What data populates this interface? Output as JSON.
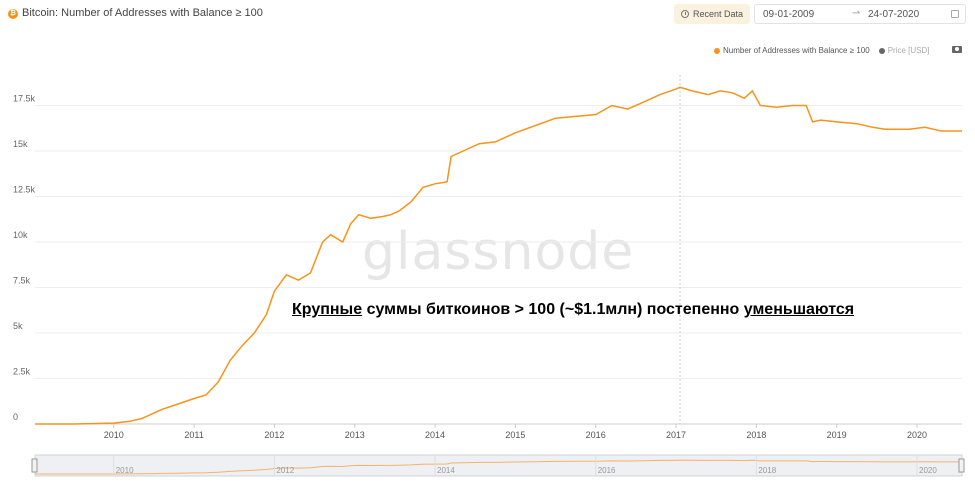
{
  "header": {
    "title": "Bitcoin: Number of Addresses with Balance ≥ 100",
    "coin_symbol": "₿",
    "recent_label": "Recent Data",
    "date_start": "09-01-2009",
    "date_arrow": "⇀",
    "date_end": "24-07-2020"
  },
  "legend": {
    "series_label": "Number of Addresses with Balance ≥ 100",
    "price_label": "Price [USD]"
  },
  "watermark": "glassnode",
  "annotation": {
    "part1": "Крупные",
    "part2": " суммы биткоинов > 100 (~$1.1млн) постепенно ",
    "part3": "уменьшаются"
  },
  "colors": {
    "series": "#f7931a",
    "price": "#666666",
    "grid": "#eeeeee"
  },
  "chart_data": {
    "type": "line",
    "title": "Bitcoin: Number of Addresses with Balance ≥ 100",
    "xlim": [
      2009.02,
      2020.56
    ],
    "ylim": [
      0,
      20000
    ],
    "yticks": [
      0,
      2500,
      5000,
      7500,
      10000,
      12500,
      15000,
      17500
    ],
    "ytick_labels": [
      "0",
      "2.5k",
      "5k",
      "7.5k",
      "10k",
      "12.5k",
      "15k",
      "17.5k"
    ],
    "xticks": [
      2010,
      2011,
      2012,
      2013,
      2014,
      2015,
      2016,
      2017,
      2018,
      2019,
      2020
    ],
    "xtick_labels": [
      "2010",
      "2011",
      "2012",
      "2013",
      "2014",
      "2015",
      "2016",
      "2017",
      "2018",
      "2019",
      "2020"
    ],
    "navigator_ticks": [
      "2010",
      "2012",
      "2014",
      "2016",
      "2018",
      "2020"
    ],
    "marker_x": 2017.05,
    "series": [
      {
        "name": "Number of Addresses with Balance ≥ 100",
        "x": [
          2009.02,
          2009.5,
          2010.0,
          2010.2,
          2010.35,
          2010.5,
          2010.6,
          2010.8,
          2011.0,
          2011.15,
          2011.3,
          2011.45,
          2011.6,
          2011.75,
          2011.9,
          2012.0,
          2012.05,
          2012.15,
          2012.3,
          2012.45,
          2012.6,
          2012.7,
          2012.85,
          2012.95,
          2013.05,
          2013.2,
          2013.35,
          2013.45,
          2013.55,
          2013.7,
          2013.85,
          2014.0,
          2014.15,
          2014.2,
          2014.35,
          2014.55,
          2014.75,
          2015.0,
          2015.25,
          2015.5,
          2015.75,
          2016.0,
          2016.2,
          2016.4,
          2016.6,
          2016.8,
          2017.0,
          2017.05,
          2017.2,
          2017.4,
          2017.55,
          2017.7,
          2017.85,
          2017.95,
          2018.05,
          2018.25,
          2018.45,
          2018.62,
          2018.7,
          2018.8,
          2019.0,
          2019.25,
          2019.45,
          2019.6,
          2019.9,
          2020.1,
          2020.3,
          2020.4,
          2020.56
        ],
        "y": [
          0,
          0,
          50,
          150,
          300,
          600,
          800,
          1100,
          1400,
          1600,
          2300,
          3500,
          4300,
          5000,
          6000,
          7300,
          7600,
          8200,
          7900,
          8300,
          10000,
          10400,
          10000,
          11000,
          11500,
          11300,
          11400,
          11500,
          11700,
          12200,
          13000,
          13200,
          13300,
          14700,
          15000,
          15400,
          15500,
          16000,
          16400,
          16800,
          16900,
          17000,
          17500,
          17300,
          17700,
          18100,
          18400,
          18500,
          18300,
          18100,
          18300,
          18200,
          17900,
          18300,
          17500,
          17400,
          17500,
          17500,
          16600,
          16700,
          16600,
          16500,
          16300,
          16200,
          16200,
          16300,
          16100,
          16100,
          16100
        ]
      }
    ]
  }
}
